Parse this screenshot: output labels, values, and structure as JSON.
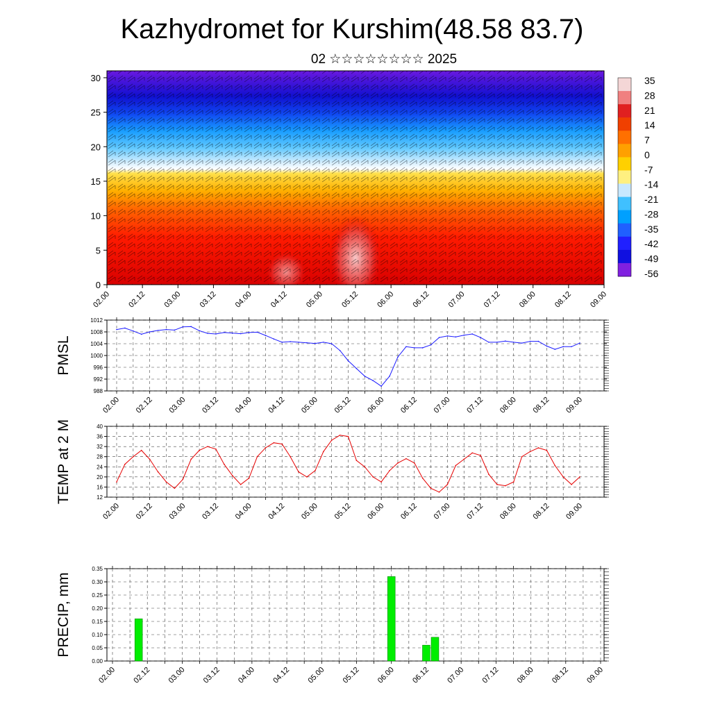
{
  "header": {
    "title": "Kazhydromet for Kurshim(48.58 83.7)",
    "subtitle": "02 ☆☆☆☆☆☆☆☆ 2025"
  },
  "colors": {
    "pmsl_line": "#1a1aff",
    "temp_line": "#e60000",
    "precip_bar": "#00ee00",
    "precip_bar_edge": "#008800"
  },
  "chart_data": [
    {
      "id": "cross-section",
      "type": "heatmap",
      "description_of_field": "temperature colour field with wind barbs vs height",
      "y_ticks": [
        "0",
        "5",
        "10",
        "15",
        "20",
        "25",
        "30"
      ],
      "ylim": [
        0,
        31
      ],
      "x_ticks": [
        "02.00",
        "02.12",
        "03.00",
        "03.12",
        "04.00",
        "04.12",
        "05.00",
        "05.12",
        "06.00",
        "06.12",
        "07.00",
        "07.12",
        "08.00",
        "08.12",
        "09.00"
      ],
      "colorbar_labels": [
        "35",
        "28",
        "21",
        "14",
        "7",
        "0",
        "-7",
        "-14",
        "-21",
        "-28",
        "-35",
        "-42",
        "-49",
        "-56"
      ],
      "colorbar_colors": [
        "#f4d6d6",
        "#f08080",
        "#e02020",
        "#f04000",
        "#ff7000",
        "#ffa000",
        "#ffd000",
        "#fff080",
        "#c8e8ff",
        "#40c0ff",
        "#00a0ff",
        "#2060ff",
        "#2020ff",
        "#1010e0",
        "#8020e0"
      ]
    },
    {
      "id": "pmsl",
      "type": "line",
      "ylabel": "PMSL",
      "ylim": [
        988,
        1012
      ],
      "y_ticks": [
        "988",
        "992",
        "996",
        "1000",
        "1004",
        "1008",
        "1012"
      ],
      "x_ticks": [
        "02.00",
        "02.12",
        "03.00",
        "03.12",
        "04.00",
        "04.12",
        "05.00",
        "05.12",
        "06.00",
        "06.12",
        "07.00",
        "07.12",
        "08.00",
        "08.12",
        "09.00"
      ],
      "x": [
        0,
        3,
        6,
        9,
        12,
        15,
        18,
        21,
        24,
        27,
        30,
        33,
        36,
        39,
        42,
        45,
        48,
        51,
        54,
        57,
        60,
        63,
        66,
        69,
        72,
        75,
        78,
        81,
        84,
        87,
        90,
        93,
        96,
        99,
        102,
        105,
        108,
        111,
        114,
        117,
        120,
        123,
        126,
        129,
        132,
        135,
        138,
        141,
        144,
        147,
        150,
        153,
        156,
        159,
        162,
        165,
        168
      ],
      "values": [
        1008.8,
        1009.3,
        1008.3,
        1007.2,
        1008.0,
        1008.5,
        1008.8,
        1008.6,
        1009.7,
        1009.8,
        1008.4,
        1007.5,
        1007.3,
        1007.8,
        1007.6,
        1007.4,
        1007.8,
        1007.9,
        1006.8,
        1005.6,
        1004.5,
        1004.7,
        1004.5,
        1004.3,
        1004.1,
        1004.5,
        1004.0,
        1001.7,
        998.2,
        995.6,
        993.0,
        991.5,
        989.6,
        993.0,
        999.5,
        1003.0,
        1002.6,
        1002.6,
        1003.6,
        1006.1,
        1006.6,
        1006.3,
        1006.9,
        1007.3,
        1006.1,
        1004.5,
        1004.5,
        1004.9,
        1004.5,
        1004.2,
        1004.8,
        1004.8,
        1003.2,
        1002.1,
        1003.0,
        1003.0,
        1004.2
      ]
    },
    {
      "id": "temp",
      "type": "line",
      "ylabel": "TEMP at 2 M",
      "ylim": [
        12,
        40
      ],
      "y_ticks": [
        "12",
        "16",
        "20",
        "24",
        "28",
        "32",
        "36",
        "40"
      ],
      "x_ticks": [
        "02.00",
        "02.12",
        "03.00",
        "03.12",
        "04.00",
        "04.12",
        "05.00",
        "05.12",
        "06.00",
        "06.12",
        "07.00",
        "07.12",
        "08.00",
        "08.12",
        "09.00"
      ],
      "x": [
        0,
        3,
        6,
        9,
        12,
        15,
        18,
        21,
        24,
        27,
        30,
        33,
        36,
        39,
        42,
        45,
        48,
        51,
        54,
        57,
        60,
        63,
        66,
        69,
        72,
        75,
        78,
        81,
        84,
        87,
        90,
        93,
        96,
        99,
        102,
        105,
        108,
        111,
        114,
        117,
        120,
        123,
        126,
        129,
        132,
        135,
        138,
        141,
        144,
        147,
        150,
        153,
        156,
        159,
        162,
        165,
        168
      ],
      "values": [
        18,
        25,
        28,
        30.5,
        27,
        22,
        18,
        15.5,
        19,
        27,
        30.5,
        32,
        31,
        25,
        20.5,
        17,
        19.5,
        28,
        31.5,
        33.5,
        33,
        28,
        22,
        20,
        22.5,
        30,
        34.5,
        36.5,
        36,
        26.5,
        24,
        20,
        18,
        22.5,
        25.5,
        27.2,
        25.5,
        19.5,
        15.5,
        14,
        17,
        24.5,
        27,
        29.5,
        28.5,
        21,
        17,
        16.5,
        18,
        28,
        30,
        31.5,
        30.5,
        24.5,
        20,
        17,
        20
      ]
    },
    {
      "id": "precip",
      "type": "bar",
      "ylabel": "PRECIP, mm",
      "ylim": [
        0,
        0.35
      ],
      "y_ticks": [
        "0.00",
        "0.05",
        "0.10",
        "0.15",
        "0.20",
        "0.25",
        "0.30",
        "0.35"
      ],
      "x_ticks": [
        "02.00",
        "02.12",
        "03.00",
        "03.12",
        "04.00",
        "04.12",
        "05.00",
        "05.12",
        "06.00",
        "06.12",
        "07.00",
        "07.12",
        "08.00",
        "08.12",
        "09.00"
      ],
      "x": [
        9,
        96,
        108,
        111
      ],
      "values": [
        0.16,
        0.32,
        0.06,
        0.09
      ]
    }
  ]
}
